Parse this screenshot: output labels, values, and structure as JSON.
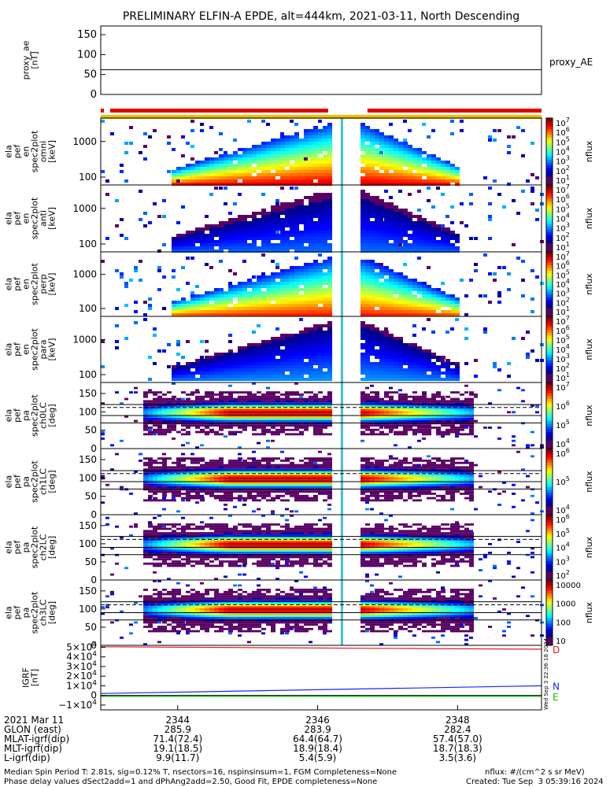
{
  "title": "PRELIMINARY ELFIN-A EPDE, alt=444km, 2021-03-11, North Descending",
  "colors": {
    "bar_red": "#e00000",
    "bar_yellow": "#f0c000",
    "bfield_d": "#e02020",
    "bfield_n": "#2020ff",
    "bfield_e": "#00cc00"
  },
  "chart_data": [
    {
      "type": "line",
      "panel": "proxy_ae",
      "ylabel": [
        "proxy_ae",
        "[nT]"
      ],
      "yticks": [
        "150",
        "100",
        "50",
        "0"
      ],
      "ylim": [
        0,
        160
      ],
      "right_label": "proxy_AE",
      "series": [
        {
          "name": "proxy_AE",
          "x": [
            2342.9,
            2349.2
          ],
          "values": [
            62,
            62
          ]
        }
      ]
    },
    {
      "type": "heatmap",
      "panel": "en_omni",
      "ylabel": [
        "ela",
        "pef",
        "en",
        "spec2plot",
        "omni",
        "[keV]"
      ],
      "yticks": [
        "1000",
        "100"
      ],
      "scale": "log",
      "colorbar": {
        "label": "nflux",
        "ticks": [
          "10^7",
          "10^6",
          "10^5",
          "10^4",
          "10^3",
          "10^2",
          "10^1"
        ]
      }
    },
    {
      "type": "heatmap",
      "panel": "en_anti",
      "ylabel": [
        "ela",
        "pef",
        "en",
        "spec2plot",
        "anti",
        "[keV]"
      ],
      "yticks": [
        "1000",
        "100"
      ],
      "scale": "log",
      "colorbar": {
        "label": "nflux",
        "ticks": [
          "10^7",
          "10^6",
          "10^5",
          "10^4",
          "10^3",
          "10^2",
          "10^1"
        ]
      }
    },
    {
      "type": "heatmap",
      "panel": "en_perp",
      "ylabel": [
        "ela",
        "pef",
        "en",
        "spec2plot",
        "perp",
        "[keV]"
      ],
      "yticks": [
        "1000",
        "100"
      ],
      "scale": "log",
      "colorbar": {
        "label": "nflux",
        "ticks": [
          "10^7",
          "10^6",
          "10^5",
          "10^4",
          "10^3",
          "10^2",
          "10^1"
        ]
      }
    },
    {
      "type": "heatmap",
      "panel": "en_para",
      "ylabel": [
        "ela",
        "pef",
        "en",
        "spec2plot",
        "para",
        "[keV]"
      ],
      "yticks": [
        "1000",
        "100"
      ],
      "scale": "log",
      "colorbar": {
        "label": "nflux",
        "ticks": [
          "10^7",
          "10^6",
          "10^5",
          "10^4",
          "10^3",
          "10^2",
          "10^1"
        ]
      }
    },
    {
      "type": "heatmap",
      "panel": "pa_ch0LC",
      "ylabel": [
        "ela",
        "pef",
        "pa",
        "spec2plot",
        "ch0LC",
        "[deg]"
      ],
      "yticks": [
        "150",
        "100",
        "50",
        "0"
      ],
      "ylim": [
        0,
        180
      ],
      "colorbar": {
        "label": "nflux",
        "ticks": [
          "10^7",
          "10^6",
          "10^5",
          "10^4"
        ]
      }
    },
    {
      "type": "heatmap",
      "panel": "pa_ch1LC",
      "ylabel": [
        "ela",
        "pef",
        "pa",
        "spec2plot",
        "ch1LC",
        "[deg]"
      ],
      "yticks": [
        "150",
        "100",
        "50",
        "0"
      ],
      "ylim": [
        0,
        180
      ],
      "colorbar": {
        "label": "nflux",
        "ticks": [
          "10^6",
          "10^5",
          "10^4"
        ]
      }
    },
    {
      "type": "heatmap",
      "panel": "pa_ch2LC",
      "ylabel": [
        "ela",
        "pef",
        "pa",
        "spec2plot",
        "ch2LC",
        "[deg]"
      ],
      "yticks": [
        "150",
        "100",
        "50",
        "0"
      ],
      "ylim": [
        0,
        180
      ],
      "colorbar": {
        "label": "nflux",
        "ticks": [
          "10^6",
          "10^5",
          "10^4",
          "10^3",
          "10^2"
        ]
      }
    },
    {
      "type": "heatmap",
      "panel": "pa_ch3LC",
      "ylabel": [
        "ela",
        "pef",
        "pa",
        "spec2plot",
        "ch3LC",
        "[deg]"
      ],
      "yticks": [
        "150",
        "100",
        "50",
        "0"
      ],
      "ylim": [
        0,
        180
      ],
      "colorbar": {
        "label": "nflux",
        "ticks": [
          "10000",
          "1000",
          "100",
          "10"
        ]
      }
    },
    {
      "type": "line",
      "panel": "igrf",
      "ylabel": [
        "IGRF",
        "[nT]"
      ],
      "yticks": [
        "5×10^4",
        "4×10^4",
        "3×10^4",
        "2×10^4",
        "1×10^4",
        "0",
        "−1×10^4"
      ],
      "ylim": [
        -15000,
        52000
      ],
      "series": [
        {
          "name": "D",
          "x": [
            2342.9,
            2349.2
          ],
          "values": [
            50500,
            48000
          ]
        },
        {
          "name": "N",
          "x": [
            2342.9,
            2349.2
          ],
          "values": [
            2000,
            10000
          ]
        },
        {
          "name": "E",
          "x": [
            2342.9,
            2349.2
          ],
          "values": [
            -1000,
            -1000
          ]
        }
      ]
    }
  ],
  "xaxis": {
    "date_label": "2021 Mar 11",
    "ticks": [
      "2344",
      "2346",
      "2348"
    ],
    "rows": [
      {
        "label": "GLON (east)",
        "values": [
          "285.9",
          "283.9",
          "282.4"
        ]
      },
      {
        "label": "MLAT-igrf(dip)",
        "values": [
          "71.4(72.4)",
          "64.4(64.7)",
          "57.4(57.0)"
        ]
      },
      {
        "label": "MLT-igrf(dip)",
        "values": [
          "19.1(18.5)",
          "18.9(18.4)",
          "18.7(18.3)"
        ]
      },
      {
        "label": "L-igrf(dip)",
        "values": [
          "9.9(11.7)",
          "5.4(5.9)",
          "3.5(3.6)"
        ]
      }
    ]
  },
  "vertical_stamp": "Wed Sep  3 22:36:18 2024",
  "footer": {
    "line1": "Median Spin Period T: 2.81s, sig=0.12% T, nsectors=16, nspinsinsum=1, FGM Completeness=None",
    "line2": "Phase delay values dSect2add=1 and dPhAng2add=2.50, Good Fit, EPDE completeness=None",
    "units": "nflux: #/(cm^2 s sr MeV)",
    "created": "Created: Tue Sep  3 05:39:16 2024"
  }
}
